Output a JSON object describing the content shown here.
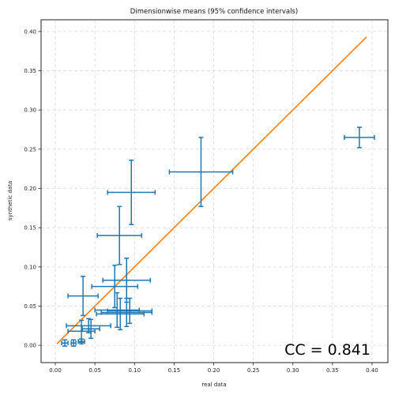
{
  "chart_data": {
    "type": "scatter",
    "title": "Dimensionwise means (95% confidence intervals)",
    "xlabel": "real data",
    "ylabel": "synthetic data",
    "xlim": [
      -0.018,
      0.42
    ],
    "ylim": [
      -0.022,
      0.415
    ],
    "xticks": [
      "0.00",
      "0.05",
      "0.10",
      "0.15",
      "0.20",
      "0.25",
      "0.30",
      "0.35",
      "0.40"
    ],
    "yticks": [
      "0.00",
      "0.05",
      "0.10",
      "0.15",
      "0.20",
      "0.25",
      "0.30",
      "0.35",
      "0.40"
    ],
    "grid": true,
    "annotation": "CC = 0.841",
    "colors": {
      "points": "#1f77b4",
      "line": "#ff7f0e"
    },
    "points": [
      {
        "x": 0.384,
        "xerr": 0.019,
        "y": 0.265,
        "yerr": 0.013
      },
      {
        "x": 0.184,
        "xerr": 0.04,
        "y": 0.221,
        "yerr": 0.044
      },
      {
        "x": 0.096,
        "xerr": 0.03,
        "y": 0.195,
        "yerr": 0.041
      },
      {
        "x": 0.081,
        "xerr": 0.028,
        "y": 0.14,
        "yerr": 0.037
      },
      {
        "x": 0.09,
        "xerr": 0.03,
        "y": 0.083,
        "yerr": 0.028
      },
      {
        "x": 0.075,
        "xerr": 0.029,
        "y": 0.075,
        "yerr": 0.027
      },
      {
        "x": 0.035,
        "xerr": 0.019,
        "y": 0.063,
        "yerr": 0.025
      },
      {
        "x": 0.078,
        "xerr": 0.028,
        "y": 0.045,
        "yerr": 0.022
      },
      {
        "x": 0.09,
        "xerr": 0.032,
        "y": 0.042,
        "yerr": 0.018
      },
      {
        "x": 0.082,
        "xerr": 0.03,
        "y": 0.04,
        "yerr": 0.02
      },
      {
        "x": 0.094,
        "xerr": 0.028,
        "y": 0.044,
        "yerr": 0.016
      },
      {
        "x": 0.042,
        "xerr": 0.028,
        "y": 0.025,
        "yerr": 0.009
      },
      {
        "x": 0.045,
        "xerr": 0.011,
        "y": 0.021,
        "yerr": 0.012
      },
      {
        "x": 0.033,
        "xerr": 0.017,
        "y": 0.018,
        "yerr": 0.014
      },
      {
        "x": 0.012,
        "xerr": 0.004,
        "y": 0.003,
        "yerr": 0.004
      },
      {
        "x": 0.023,
        "xerr": 0.003,
        "y": 0.003,
        "yerr": 0.004
      },
      {
        "x": 0.033,
        "xerr": 0.004,
        "y": 0.005,
        "yerr": 0.003
      }
    ],
    "reference_line": {
      "x": [
        0.002,
        0.393
      ],
      "y": [
        0.002,
        0.393
      ]
    }
  }
}
